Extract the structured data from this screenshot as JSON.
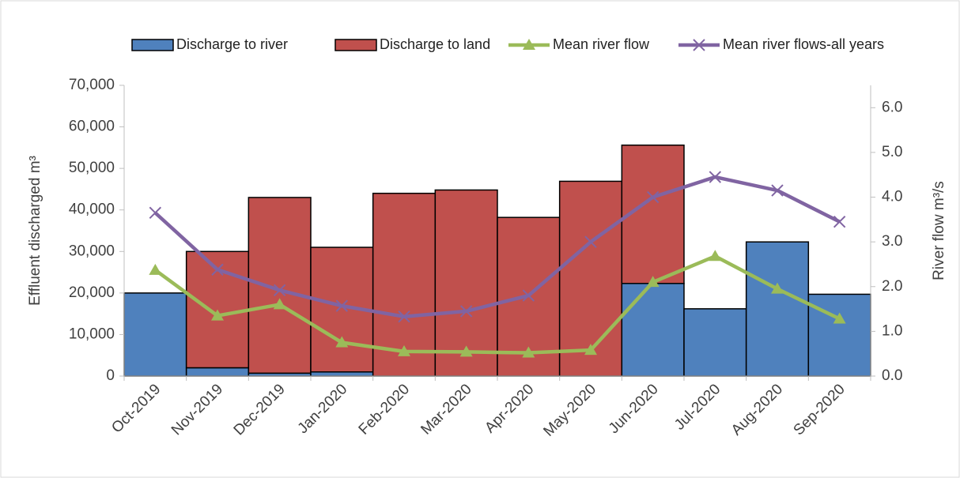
{
  "chart_data": {
    "type": "bar-line",
    "categories": [
      "Oct-2019",
      "Nov-2019",
      "Dec-2019",
      "Jan-2020",
      "Feb-2020",
      "Mar-2020",
      "Apr-2020",
      "May-2020",
      "Jun-2020",
      "Jul-2020",
      "Aug-2020",
      "Sep-2020"
    ],
    "series": [
      {
        "name": "Discharge to river",
        "type": "bar",
        "color": "#4f81bd",
        "values": [
          20000,
          2000,
          700,
          1000,
          0,
          0,
          0,
          0,
          22300,
          16200,
          32300,
          19700
        ]
      },
      {
        "name": "Discharge to land",
        "type": "bar",
        "color": "#c0504d",
        "values": [
          0,
          28000,
          42300,
          30000,
          44000,
          44800,
          38200,
          46900,
          33300,
          0,
          0,
          0
        ]
      },
      {
        "name": "Mean river flow",
        "type": "line",
        "marker": "triangle",
        "axis": "y2",
        "color": "#9bbb59",
        "values": [
          2.37,
          1.35,
          1.6,
          0.75,
          0.55,
          0.54,
          0.52,
          0.58,
          2.1,
          2.68,
          1.95,
          1.28
        ]
      },
      {
        "name": "Mean river flows-all years",
        "type": "line",
        "marker": "x",
        "axis": "y2",
        "color": "#8064a2",
        "values": [
          3.65,
          2.38,
          1.92,
          1.57,
          1.33,
          1.45,
          1.8,
          3.0,
          4.0,
          4.45,
          4.15,
          3.45
        ]
      }
    ],
    "ylabel": "Effluent discharged m³",
    "y2label": "River flow m³/s",
    "ylim": [
      0,
      70000
    ],
    "yticks": [
      0,
      {
        "value": 10000,
        "label": "10,000"
      },
      {
        "value": 20000,
        "label": "20,000"
      },
      {
        "value": 30000,
        "label": "30,000"
      },
      {
        "value": 40000,
        "label": "40,000"
      },
      {
        "value": 50000,
        "label": "50,000"
      },
      {
        "value": 60000,
        "label": "60,000"
      },
      {
        "value": 70000,
        "label": "70,000"
      }
    ],
    "y2lim": [
      0,
      6.5
    ],
    "y2ticks": [
      {
        "value": 0,
        "label": "0.0"
      },
      {
        "value": 1,
        "label": "1.0"
      },
      {
        "value": 2,
        "label": "2.0"
      },
      {
        "value": 3,
        "label": "3.0"
      },
      {
        "value": 4,
        "label": "4.0"
      },
      {
        "value": 5,
        "label": "5.0"
      },
      {
        "value": 6,
        "label": "6.0"
      }
    ],
    "grid": false,
    "legend": "top"
  }
}
